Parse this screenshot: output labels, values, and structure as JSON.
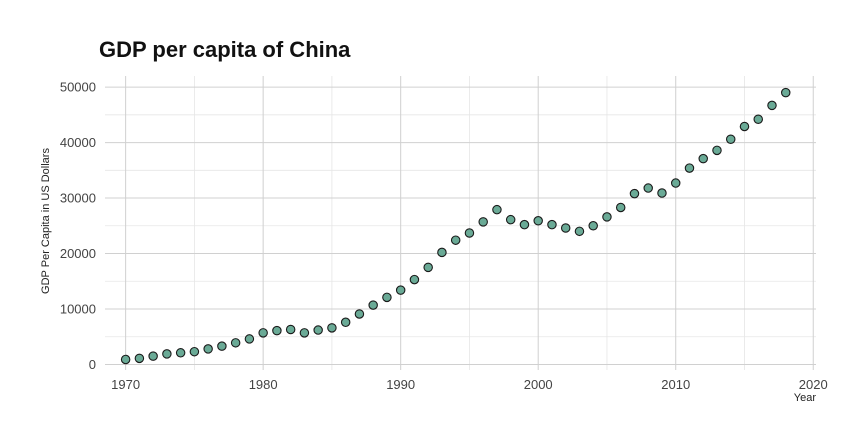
{
  "chart_data": {
    "type": "scatter",
    "title": "GDP per capita of China",
    "xlabel": "Year",
    "ylabel": "GDP Per Capita in US Dollars",
    "xlim": [
      1968.5,
      2020.2
    ],
    "ylim": [
      -1000,
      52000
    ],
    "x_ticks": [
      1970,
      1980,
      1990,
      2000,
      2010,
      2020
    ],
    "y_ticks": [
      0,
      10000,
      20000,
      30000,
      40000,
      50000
    ],
    "grid": true,
    "point_color": "#6aaa96",
    "series": [
      {
        "x": [
          1970,
          1971,
          1972,
          1973,
          1974,
          1975,
          1976,
          1977,
          1978,
          1979,
          1980,
          1981,
          1982,
          1983,
          1984,
          1985,
          1986,
          1987,
          1988,
          1989,
          1990,
          1991,
          1992,
          1993,
          1994,
          1995,
          1996,
          1997,
          1998,
          1999,
          2000,
          2001,
          2002,
          2003,
          2004,
          2005,
          2006,
          2007,
          2008,
          2009,
          2010,
          2011,
          2012,
          2013,
          2014,
          2015,
          2016,
          2017,
          2018
        ],
        "y": [
          900,
          1100,
          1500,
          1900,
          2100,
          2300,
          2800,
          3300,
          3900,
          4600,
          5700,
          6100,
          6300,
          5700,
          6200,
          6600,
          7600,
          9100,
          10700,
          12100,
          13400,
          15300,
          17500,
          20200,
          22400,
          23700,
          25700,
          27900,
          26100,
          25200,
          25900,
          25200,
          24600,
          24000,
          25000,
          26600,
          28300,
          30800,
          31800,
          30900,
          32700,
          35400,
          37100,
          38600,
          40600,
          42900,
          44200,
          46700,
          49000
        ]
      }
    ]
  }
}
